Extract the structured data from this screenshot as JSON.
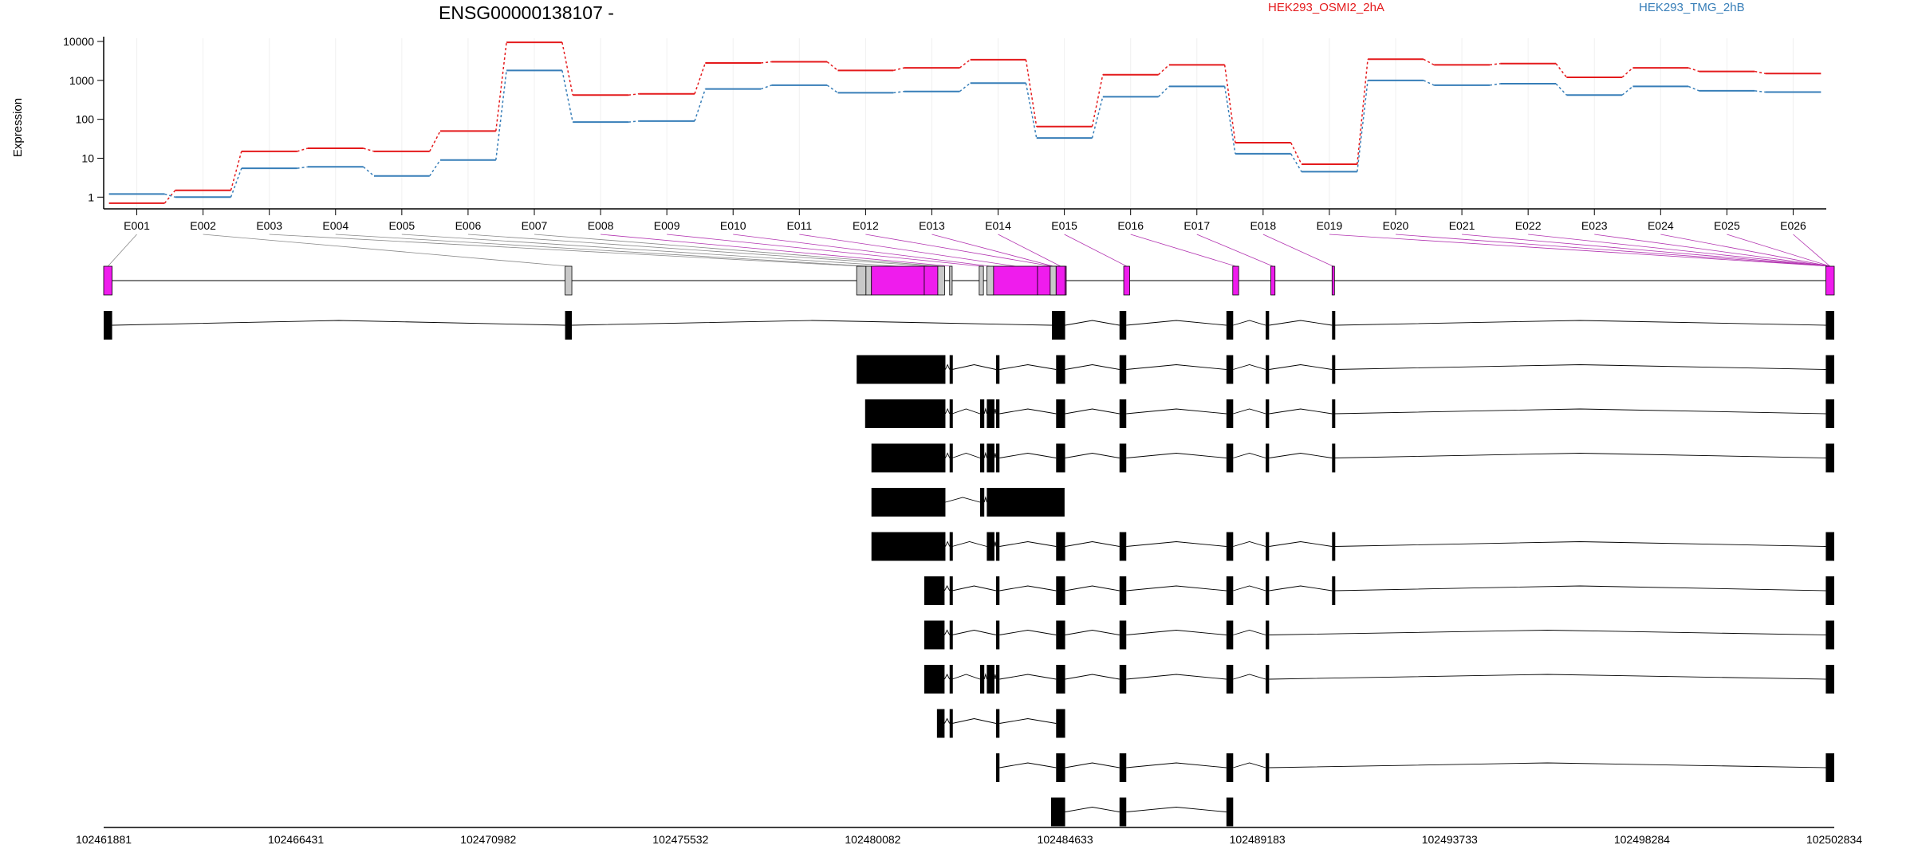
{
  "chart_data": {
    "type": "line",
    "title": "ENSG00000138107 -",
    "ylabel": "Expression",
    "xlabel": "",
    "y_scale": "log",
    "ylim": [
      0.5,
      10000
    ],
    "y_ticks": [
      1,
      10,
      100,
      1000,
      10000
    ],
    "y_tick_labels": [
      "1",
      "10",
      "100",
      "1000",
      "10000"
    ],
    "grid": "vertical lines at exon positions",
    "legend_placement": "top-right",
    "categories": [
      "E001",
      "E002",
      "E003",
      "E004",
      "E005",
      "E006",
      "E007",
      "E008",
      "E009",
      "E010",
      "E011",
      "E012",
      "E013",
      "E014",
      "E015",
      "E016",
      "E017",
      "E018",
      "E019",
      "E020",
      "E021",
      "E022",
      "E023",
      "E024",
      "E025",
      "E026"
    ],
    "series": [
      {
        "name": "HEK293_OSMI2_2hA",
        "color": "#e41a1c",
        "values": [
          0.7,
          1.5,
          15,
          18,
          15,
          50,
          9500,
          420,
          450,
          2800,
          3000,
          1800,
          2100,
          3400,
          65,
          1400,
          2500,
          25,
          7,
          3500,
          2500,
          2700,
          1200,
          2100,
          1700,
          1500
        ]
      },
      {
        "name": "HEK293_TMG_2hB",
        "color": "#377eb8",
        "values": [
          1.2,
          1.0,
          5.5,
          6,
          3.5,
          9,
          1800,
          85,
          90,
          600,
          750,
          480,
          520,
          850,
          33,
          380,
          700,
          13,
          4.5,
          1000,
          750,
          820,
          420,
          700,
          540,
          500
        ]
      }
    ],
    "genomic_coordinates": [
      "102461881",
      "102466431",
      "102470982",
      "102475532",
      "102480082",
      "102484633",
      "102489183",
      "102493733",
      "102498284",
      "102502834"
    ],
    "genome_range": [
      102461881,
      102502834
    ],
    "exon_highlight_color": "#ef1ced",
    "exon_gray_color": "#c8c8c8",
    "gene_exons": [
      {
        "start": 102461881,
        "end": 102462081,
        "highlight": true
      },
      {
        "start": 102472800,
        "end": 102472960,
        "highlight": false
      },
      {
        "start": 102479700,
        "end": 102479920,
        "highlight": false
      },
      {
        "start": 102479920,
        "end": 102480050,
        "highlight": false
      },
      {
        "start": 102480050,
        "end": 102481300,
        "highlight": true
      },
      {
        "start": 102481300,
        "end": 102481620,
        "highlight": true
      },
      {
        "start": 102481620,
        "end": 102481780,
        "highlight": false
      },
      {
        "start": 102481900,
        "end": 102481960,
        "highlight": false
      },
      {
        "start": 102482600,
        "end": 102482700,
        "highlight": false
      },
      {
        "start": 102482780,
        "end": 102482940,
        "highlight": false
      },
      {
        "start": 102482940,
        "end": 102483980,
        "highlight": true
      },
      {
        "start": 102483980,
        "end": 102484660,
        "highlight": true
      },
      {
        "start": 102484280,
        "end": 102484420,
        "highlight": false
      },
      {
        "start": 102484420,
        "end": 102484633,
        "highlight": true
      },
      {
        "start": 102486020,
        "end": 102486160,
        "highlight": true
      },
      {
        "start": 102488600,
        "end": 102488740,
        "highlight": true
      },
      {
        "start": 102489500,
        "end": 102489600,
        "highlight": true
      },
      {
        "start": 102490950,
        "end": 102491000,
        "highlight": true
      },
      {
        "start": 102502634,
        "end": 102502834,
        "highlight": true
      }
    ],
    "transcripts": [
      [
        [
          102461881,
          102462081
        ],
        [
          102472800,
          102472960
        ],
        [
          102484320,
          102484633
        ],
        [
          102485920,
          102486080
        ],
        [
          102488450,
          102488610
        ],
        [
          102489380,
          102489460
        ],
        [
          102490950,
          102491000
        ],
        [
          102502634,
          102502834
        ]
      ],
      [
        [
          102479700,
          102481800
        ],
        [
          102481900,
          102481960
        ],
        [
          102483000,
          102483080
        ],
        [
          102484420,
          102484633
        ],
        [
          102485920,
          102486080
        ],
        [
          102488450,
          102488610
        ],
        [
          102489380,
          102489460
        ],
        [
          102490950,
          102491000
        ],
        [
          102502634,
          102502834
        ]
      ],
      [
        [
          102479900,
          102481800
        ],
        [
          102481900,
          102481960
        ],
        [
          102482620,
          102482720
        ],
        [
          102482780,
          102482960
        ],
        [
          102483000,
          102483080
        ],
        [
          102484420,
          102484633
        ],
        [
          102485920,
          102486080
        ],
        [
          102488450,
          102488610
        ],
        [
          102489380,
          102489460
        ],
        [
          102490950,
          102491000
        ],
        [
          102502634,
          102502834
        ]
      ],
      [
        [
          102480050,
          102481800
        ],
        [
          102481900,
          102481960
        ],
        [
          102482620,
          102482720
        ],
        [
          102482780,
          102482960
        ],
        [
          102483000,
          102483080
        ],
        [
          102484420,
          102484633
        ],
        [
          102485920,
          102486080
        ],
        [
          102488450,
          102488610
        ],
        [
          102489380,
          102489460
        ],
        [
          102490950,
          102491000
        ],
        [
          102502634,
          102502834
        ]
      ],
      [
        [
          102480050,
          102481800
        ],
        [
          102482620,
          102482720
        ],
        [
          102482780,
          102484620
        ]
      ],
      [
        [
          102480050,
          102481800
        ],
        [
          102481900,
          102481960
        ],
        [
          102482780,
          102482960
        ],
        [
          102483000,
          102483080
        ],
        [
          102484420,
          102484633
        ],
        [
          102485920,
          102486080
        ],
        [
          102488450,
          102488610
        ],
        [
          102489380,
          102489460
        ],
        [
          102490950,
          102491000
        ],
        [
          102502634,
          102502834
        ]
      ],
      [
        [
          102481300,
          102481780
        ],
        [
          102481900,
          102481960
        ],
        [
          102483000,
          102483080
        ],
        [
          102484420,
          102484633
        ],
        [
          102485920,
          102486080
        ],
        [
          102488450,
          102488610
        ],
        [
          102489380,
          102489460
        ],
        [
          102490950,
          102491000
        ],
        [
          102502634,
          102502834
        ]
      ],
      [
        [
          102481300,
          102481780
        ],
        [
          102481900,
          102481960
        ],
        [
          102483000,
          102483080
        ],
        [
          102484420,
          102484633
        ],
        [
          102485920,
          102486080
        ],
        [
          102488450,
          102488610
        ],
        [
          102489380,
          102489460
        ],
        [
          102502634,
          102502834
        ]
      ],
      [
        [
          102481300,
          102481780
        ],
        [
          102481900,
          102481960
        ],
        [
          102482620,
          102482720
        ],
        [
          102482780,
          102482960
        ],
        [
          102483000,
          102483080
        ],
        [
          102484420,
          102484633
        ],
        [
          102485920,
          102486080
        ],
        [
          102488450,
          102488610
        ],
        [
          102489380,
          102489460
        ],
        [
          102502634,
          102502834
        ]
      ],
      [
        [
          102481600,
          102481780
        ],
        [
          102481900,
          102481960
        ],
        [
          102483000,
          102483080
        ],
        [
          102484420,
          102484633
        ]
      ],
      [
        [
          102483000,
          102483080
        ],
        [
          102484420,
          102484633
        ],
        [
          102485920,
          102486080
        ],
        [
          102488450,
          102488610
        ],
        [
          102489380,
          102489460
        ],
        [
          102502634,
          102502834
        ]
      ],
      [
        [
          102484300,
          102484633
        ],
        [
          102485920,
          102486080
        ],
        [
          102488450,
          102488610
        ]
      ]
    ]
  }
}
